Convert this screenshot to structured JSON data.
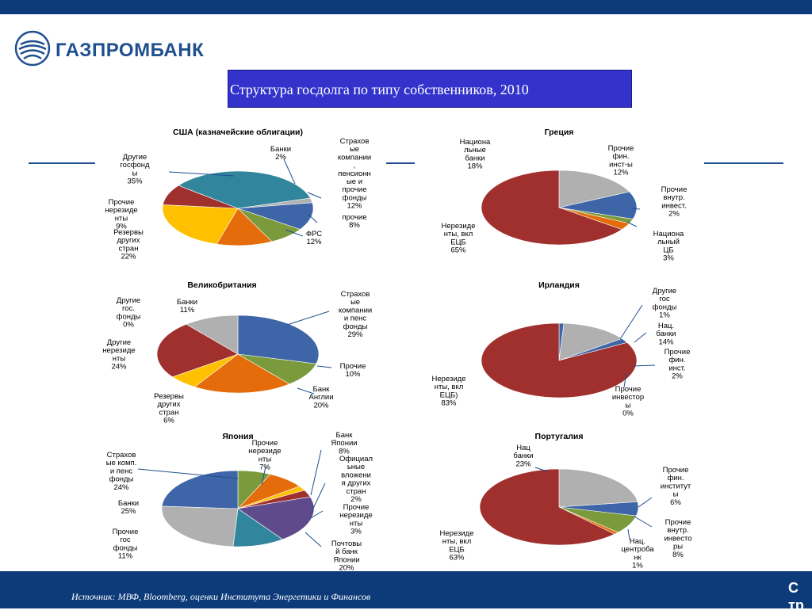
{
  "brand": "ГАЗПРОМБАНК",
  "title": "Структура госдолга по типу собственников, 2010",
  "source": "Источник: МВФ, Bloomberg, оценки Института Энергетики и Финансов",
  "page_label": "С тр",
  "colors": {
    "blue": "#3e65a8",
    "red": "#a0302e",
    "green": "#7a9a3c",
    "orange": "#e46c0a",
    "yellow": "#ffc000",
    "teal": "#31859c",
    "gray": "#b0b0b0",
    "purple": "#5f4b8b",
    "navy": "#0d3b7a"
  },
  "chart_data": [
    {
      "type": "pie",
      "title": "США (казначейские облигации)",
      "slices": [
        {
          "label": "Банки 2%",
          "value": 2
        },
        {
          "label": "Страховые компании, пенсионные и прочие фонды 12%",
          "value": 12
        },
        {
          "label": "прочие 8%",
          "value": 8
        },
        {
          "label": "ФРС 12%",
          "value": 12
        },
        {
          "label": "Резервы других стран 22%",
          "value": 22
        },
        {
          "label": "Прочие нерезиденты 9%",
          "value": 9
        },
        {
          "label": "Другие госфонды 35%",
          "value": 35
        }
      ]
    },
    {
      "type": "pie",
      "title": "Греция",
      "slices": [
        {
          "label": "Национальные банки 18%",
          "value": 18
        },
        {
          "label": "Прочие фин. инст-ы 12%",
          "value": 12
        },
        {
          "label": "Прочие внутр. инвест. 2%",
          "value": 2
        },
        {
          "label": "Национальный ЦБ 3%",
          "value": 3
        },
        {
          "label": "Нерезиденты, вкл ЕЦБ 65%",
          "value": 65
        }
      ]
    },
    {
      "type": "pie",
      "title": "Великобритания",
      "slices": [
        {
          "label": "Страховые компании и пенс фонды 29%",
          "value": 29
        },
        {
          "label": "Прочие 10%",
          "value": 10
        },
        {
          "label": "Банк Англии 20%",
          "value": 20
        },
        {
          "label": "Резервы других стран 6%",
          "value": 6
        },
        {
          "label": "Другие нерезиденты 24%",
          "value": 24
        },
        {
          "label": "Другие гос. фонды 0%",
          "value": 0
        },
        {
          "label": "Банки 11%",
          "value": 11
        }
      ]
    },
    {
      "type": "pie",
      "title": "Ирландия",
      "slices": [
        {
          "label": "Другие гос фонды 1%",
          "value": 1
        },
        {
          "label": "Нац. банки 14%",
          "value": 14
        },
        {
          "label": "Прочие фин. инст. 2%",
          "value": 2
        },
        {
          "label": "Прочие инвесторы 0%",
          "value": 0
        },
        {
          "label": "Нерезиденты, вкл ЕЦБ) 83%",
          "value": 83
        }
      ]
    },
    {
      "type": "pie",
      "title": "Япония",
      "slices": [
        {
          "label": "Прочие нерезиденты 7%",
          "value": 7
        },
        {
          "label": "Банк Японии 8%",
          "value": 8
        },
        {
          "label": "Официальные вложения других стран 2%",
          "value": 2
        },
        {
          "label": "Прочие нерезиденты 3%",
          "value": 3
        },
        {
          "label": "Почтовый банк Японии 20%",
          "value": 20
        },
        {
          "label": "Прочие гос фонды 11%",
          "value": 11
        },
        {
          "label": "Банки 25%",
          "value": 25
        },
        {
          "label": "Страховые комп. и пенс фонды 24%",
          "value": 24
        }
      ]
    },
    {
      "type": "pie",
      "title": "Португалия",
      "slices": [
        {
          "label": "Нац банки 23%",
          "value": 23
        },
        {
          "label": "Прочие фин. институты 6%",
          "value": 6
        },
        {
          "label": "Прочие внутр. инвесторы 8%",
          "value": 8
        },
        {
          "label": "Нац. центробанк 1%",
          "value": 1
        },
        {
          "label": "Нерезиденты, вкл ЕЦБ 63%",
          "value": 63
        }
      ]
    }
  ],
  "label_lines": [
    [
      "США (казначейские облигации)"
    ],
    [
      "Банки",
      "2%"
    ],
    [
      "Страхов",
      "ые",
      "компании",
      ",",
      "пенсионн",
      "ые и",
      "прочие",
      "фонды",
      "12%"
    ],
    [
      "прочие",
      "8%"
    ],
    [
      "ФРС",
      "12%"
    ],
    [
      "Резервы",
      "других",
      "стран",
      "22%"
    ],
    [
      "Прочие",
      "нерезиде",
      "нты",
      "9%"
    ],
    [
      "Другие",
      "госфонд",
      "ы",
      "35%"
    ],
    [
      "Греция"
    ],
    [
      "Национа",
      "льные",
      "банки",
      "18%"
    ],
    [
      "Прочие",
      "фин.",
      "инст-ы",
      "12%"
    ],
    [
      "Прочие",
      "внутр.",
      "инвест.",
      "2%"
    ],
    [
      "Национа",
      "льный",
      "ЦБ",
      "3%"
    ],
    [
      "Нерезиде",
      "нты, вкл",
      "ЕЦБ",
      "65%"
    ],
    [
      "Великобритания"
    ],
    [
      "Страхов",
      "ые",
      "компании",
      "и пенс",
      "фонды",
      "29%"
    ],
    [
      "Прочие",
      "10%"
    ],
    [
      "Банк",
      "Англии",
      "20%"
    ],
    [
      "Резервы",
      "других",
      "стран",
      "6%"
    ],
    [
      "Другие",
      "нерезиде",
      "нты",
      "24%"
    ],
    [
      "Другие",
      "гос.",
      "фонды",
      "0%"
    ],
    [
      "Банки",
      "11%"
    ],
    [
      "Ирландия"
    ],
    [
      "Другие",
      "гос",
      "фонды",
      "1%"
    ],
    [
      "Нац.",
      "банки",
      "14%"
    ],
    [
      "Прочие",
      "фин.",
      "инст.",
      "2%"
    ],
    [
      "Прочие",
      "инвестор",
      "ы",
      "0%"
    ],
    [
      "Нерезиде",
      "нты, вкл",
      "ЕЦБ)",
      "83%"
    ],
    [
      "Япония"
    ],
    [
      "Прочие",
      "нерезиде",
      "нты",
      "7%"
    ],
    [
      "Банк",
      "Японии",
      "8%"
    ],
    [
      "Официал",
      "ьные",
      "вложени",
      "я других",
      "стран",
      "2%"
    ],
    [
      "Прочие",
      "нерезиде",
      "нты",
      "3%"
    ],
    [
      "Почтовы",
      "й банк",
      "Японии",
      "20%"
    ],
    [
      "Прочие",
      "гос",
      "фонды",
      "11%"
    ],
    [
      "Банки",
      "25%"
    ],
    [
      "Страхов",
      "ые комп.",
      "и пенс",
      "фонды",
      "24%"
    ],
    [
      "Португалия"
    ],
    [
      "Нац",
      "банки",
      "23%"
    ],
    [
      "Прочие",
      "фин.",
      "институт",
      "ы",
      "6%"
    ],
    [
      "Прочие",
      "внутр.",
      "инвесто",
      "ры",
      "8%"
    ],
    [
      "Нац.",
      "центроба",
      "нк",
      "1%"
    ],
    [
      "Нерезиде",
      "нты, вкл",
      "ЕЦБ",
      "63%"
    ]
  ]
}
